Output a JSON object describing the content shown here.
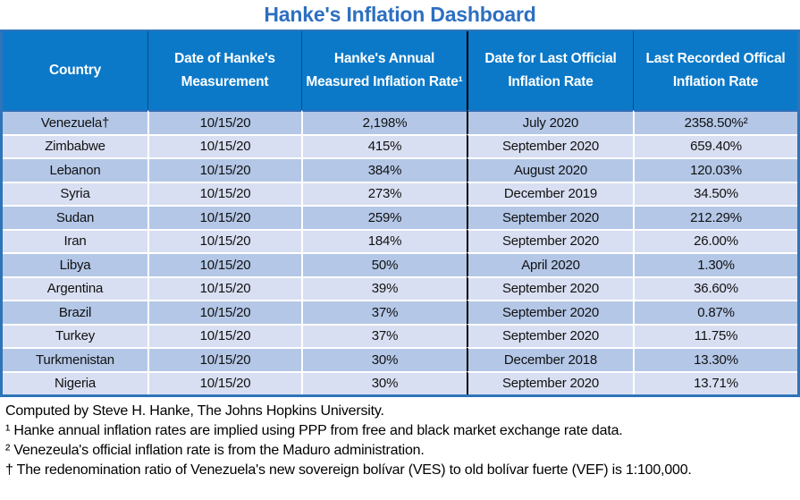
{
  "title": "Hanke's Inflation Dashboard",
  "colors": {
    "title_text": "#2d6fc1",
    "header_bg": "#0b79c8",
    "header_text": "#ffffff",
    "row_odd_bg": "#b4c7e7",
    "row_even_bg": "#d9dff2",
    "outer_border": "#2e74b9",
    "column_divider": "#000000",
    "body_text": "#111111"
  },
  "chart_data": {
    "type": "table",
    "title": "Hanke's Inflation Dashboard",
    "columns": [
      "Country",
      "Date of Hanke's Measurement",
      "Hanke's Annual Measured Inflation Rate¹",
      "Date for Last Official Inflation Rate",
      "Last Recorded Offical Inflation Rate"
    ],
    "rows": [
      [
        "Venezuela†",
        "10/15/20",
        "2,198%",
        "July 2020",
        "2358.50%²"
      ],
      [
        "Zimbabwe",
        "10/15/20",
        "415%",
        "September 2020",
        "659.40%"
      ],
      [
        "Lebanon",
        "10/15/20",
        "384%",
        "August 2020",
        "120.03%"
      ],
      [
        "Syria",
        "10/15/20",
        "273%",
        "December 2019",
        "34.50%"
      ],
      [
        "Sudan",
        "10/15/20",
        "259%",
        "September 2020",
        "212.29%"
      ],
      [
        "Iran",
        "10/15/20",
        "184%",
        "September 2020",
        "26.00%"
      ],
      [
        "Libya",
        "10/15/20",
        "50%",
        "April 2020",
        "1.30%"
      ],
      [
        "Argentina",
        "10/15/20",
        "39%",
        "September 2020",
        "36.60%"
      ],
      [
        "Brazil",
        "10/15/20",
        "37%",
        "September 2020",
        "0.87%"
      ],
      [
        "Turkey",
        "10/15/20",
        "37%",
        "September 2020",
        "11.75%"
      ],
      [
        "Turkmenistan",
        "10/15/20",
        "30%",
        "December 2018",
        "13.30%"
      ],
      [
        "Nigeria",
        "10/15/20",
        "30%",
        "September 2020",
        "13.71%"
      ]
    ],
    "notes": [
      "Computed by Steve H. Hanke, The Johns Hopkins University.",
      "¹ Hanke annual inflation rates are implied using PPP from free and black market exchange rate data.",
      "² Venezeula's official inflation rate is from the Maduro administration.",
      "† The redenomination ratio of Venezuela's new sovereign bolívar (VES) to old bolívar fuerte (VEF) is 1:100,000."
    ]
  }
}
